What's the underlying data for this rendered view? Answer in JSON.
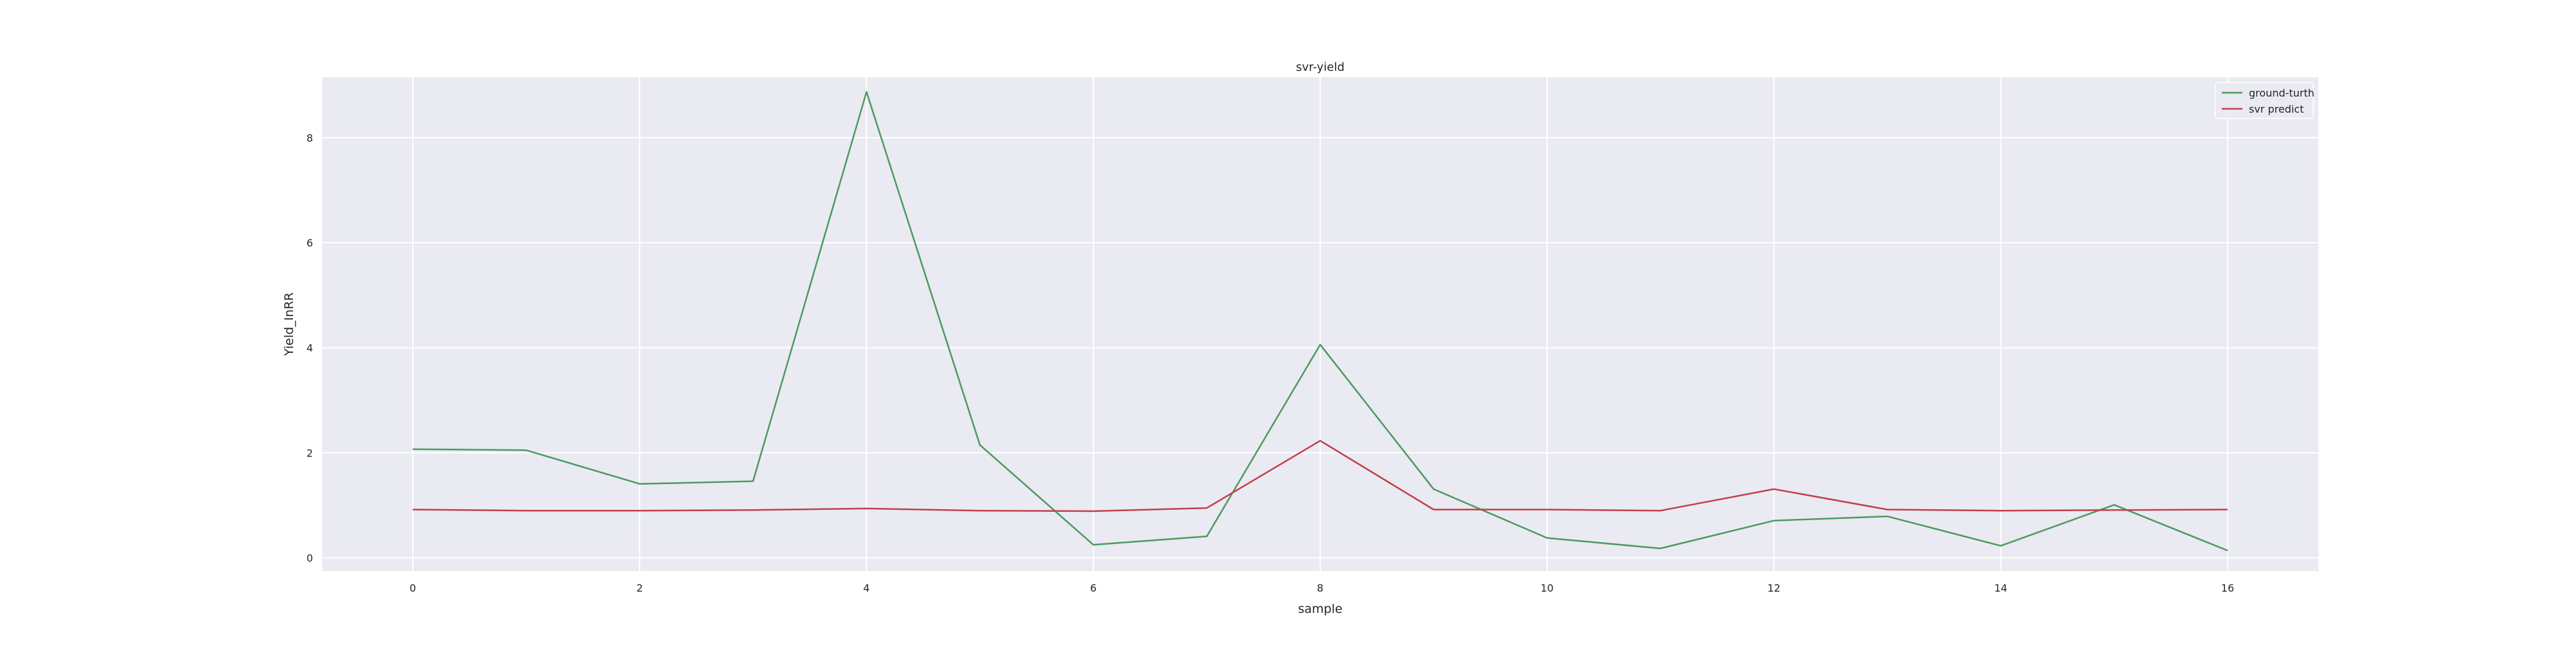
{
  "chart_data": {
    "type": "line",
    "title": "svr-yield",
    "xlabel": "sample",
    "ylabel": "Yield_InRR",
    "x": [
      0,
      1,
      2,
      3,
      4,
      5,
      6,
      7,
      8,
      9,
      10,
      11,
      12,
      13,
      14,
      15,
      16
    ],
    "xlim": [
      -0.8,
      16.8
    ],
    "ylim": [
      -0.25,
      9.15
    ],
    "xticks": [
      0,
      2,
      4,
      6,
      8,
      10,
      12,
      14,
      16
    ],
    "yticks": [
      0,
      2,
      4,
      6,
      8
    ],
    "grid": true,
    "legend_position": "top-right",
    "series": [
      {
        "name": "ground-turth",
        "color": "#4c9a5e",
        "values": [
          2.07,
          2.05,
          1.41,
          1.46,
          8.87,
          2.15,
          0.25,
          0.41,
          4.06,
          1.31,
          0.38,
          0.18,
          0.71,
          0.79,
          0.23,
          1.01,
          0.14
        ]
      },
      {
        "name": "svr predict",
        "color": "#c0404a",
        "values": [
          0.92,
          0.9,
          0.9,
          0.91,
          0.94,
          0.9,
          0.89,
          0.95,
          2.23,
          0.92,
          0.92,
          0.9,
          1.31,
          0.92,
          0.9,
          0.91,
          0.92
        ]
      }
    ],
    "colors": {
      "plot_background": "#eaeaf2",
      "grid": "#ffffff",
      "text": "#262626"
    }
  }
}
